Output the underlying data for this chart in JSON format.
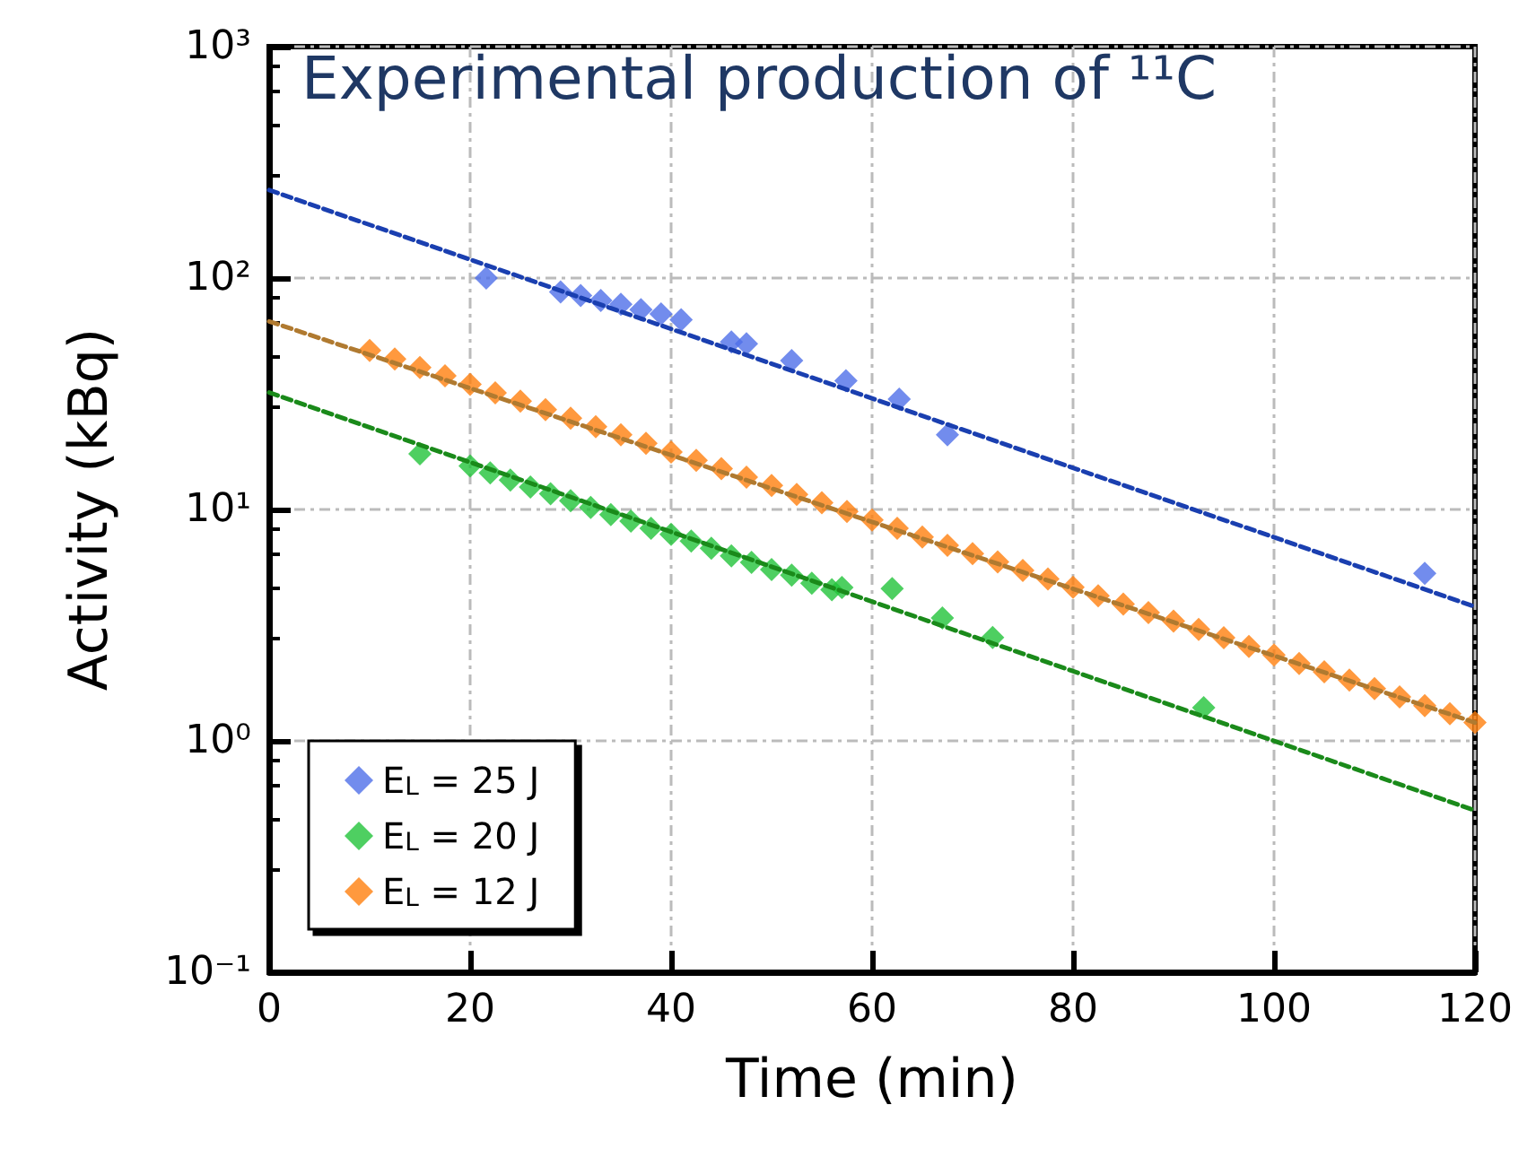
{
  "chart_data": {
    "type": "scatter",
    "title": "Experimental production of ¹¹C",
    "xlabel": "Time (min)",
    "ylabel": "Activity (kBq)",
    "xlim": [
      0,
      120
    ],
    "xticks": [
      0,
      20,
      40,
      60,
      80,
      100,
      120
    ],
    "ylim": [
      0.1,
      1000
    ],
    "yticks": [
      {
        "value": 0.1,
        "label": "10⁻¹"
      },
      {
        "value": 1,
        "label": "10⁰"
      },
      {
        "value": 10,
        "label": "10¹"
      },
      {
        "value": 100,
        "label": "10²"
      },
      {
        "value": 1000,
        "label": "10³"
      }
    ],
    "log": "y",
    "grid": true,
    "legend": "bottom left",
    "marker": "diamond",
    "series": [
      {
        "name": "E$_{L}$ = 25 J",
        "type": "scatter",
        "color": "#4f6fe8",
        "x": [
          21.6,
          29,
          31,
          33,
          35,
          37,
          39,
          41,
          46,
          47.5,
          52,
          57.4,
          62.7,
          67.5,
          115
        ],
        "values": [
          100,
          87,
          84,
          80,
          77,
          73,
          70,
          66,
          53,
          52,
          44,
          36,
          30,
          21,
          5.3
        ]
      },
      {
        "name": "E$_{L}$ = 20 J",
        "type": "scatter",
        "color": "#22c33a",
        "x": [
          15,
          20,
          22,
          24,
          26,
          28,
          30,
          32,
          34,
          36,
          38,
          40,
          42,
          44,
          46,
          48,
          50,
          52,
          54,
          56,
          57,
          62,
          67,
          72,
          93
        ],
        "values": [
          17.4,
          15.4,
          14.4,
          13.4,
          12.5,
          11.7,
          10.9,
          10.2,
          9.5,
          8.9,
          8.3,
          7.8,
          7.3,
          6.8,
          6.3,
          5.9,
          5.5,
          5.2,
          4.8,
          4.5,
          4.6,
          4.55,
          3.4,
          2.8,
          1.39
        ]
      },
      {
        "name": "E$_{L}$ = 12 J",
        "type": "scatter",
        "color": "#ff7f0e",
        "x": [
          10,
          12.5,
          15,
          17.5,
          20,
          22.5,
          25,
          27.5,
          30,
          32.5,
          35,
          37.5,
          40,
          42.5,
          45,
          47.5,
          50,
          52.5,
          55,
          57.5,
          60,
          62.5,
          65,
          67.5,
          70,
          72.5,
          75,
          77.5,
          80,
          82.5,
          85,
          87.5,
          90,
          92.5,
          95,
          97.5,
          100,
          102.5,
          105,
          107.5,
          110,
          112.5,
          115,
          117.5,
          120
        ],
        "values": [
          48.6,
          44.7,
          41.1,
          37.8,
          34.7,
          31.9,
          29.4,
          27.0,
          24.8,
          22.8,
          21.0,
          19.3,
          17.7,
          16.3,
          15.0,
          13.8,
          12.7,
          11.6,
          10.7,
          9.8,
          9.0,
          8.3,
          7.6,
          7.0,
          6.45,
          5.93,
          5.45,
          5.01,
          4.61,
          4.24,
          3.9,
          3.58,
          3.29,
          3.03,
          2.79,
          2.56,
          2.35,
          2.16,
          1.99,
          1.83,
          1.68,
          1.55,
          1.42,
          1.31,
          1.2
        ]
      },
      {
        "type": "line",
        "color": "#1a3fb0",
        "line_style": "dashed",
        "marker": "none",
        "x": [
          0,
          120
        ],
        "values": [
          240,
          3.8
        ]
      },
      {
        "type": "line",
        "color": "#b07a30",
        "line_style": "dashed",
        "marker": "none",
        "x": [
          0,
          120
        ],
        "values": [
          65,
          1.2
        ]
      },
      {
        "type": "line",
        "color": "#1a8a1a",
        "line_style": "dashed",
        "marker": "none",
        "x": [
          0,
          120
        ],
        "values": [
          32,
          0.5
        ]
      }
    ]
  }
}
